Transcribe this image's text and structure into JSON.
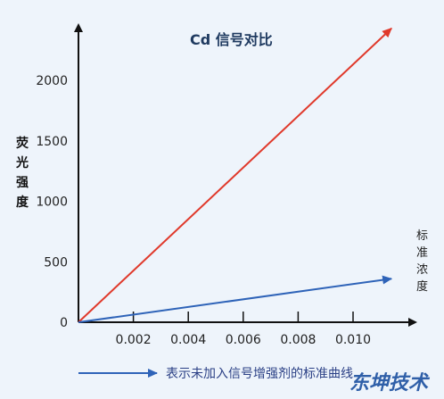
{
  "chart_data": {
    "type": "line",
    "title": "Cd 信号对比",
    "ylabel": "荧光强度",
    "xlabel": "标准浓度",
    "xlim": [
      0,
      0.0115
    ],
    "ylim": [
      0,
      2300
    ],
    "x_ticks": [
      0.002,
      0.004,
      0.006,
      0.008,
      0.01
    ],
    "x_tick_labels": [
      "0.002",
      "0.004",
      "0.006",
      "0.008",
      "0.010"
    ],
    "y_ticks": [
      0,
      500,
      1000,
      1500,
      2000
    ],
    "y_tick_labels": [
      "0",
      "500",
      "1000",
      "1500",
      "2000"
    ],
    "series": [
      {
        "color": "#e0392b",
        "x": [
          0,
          0.0114
        ],
        "y": [
          0,
          2430
        ]
      },
      {
        "name": "表示未加入信号增强剂的标准曲线",
        "color": "#2e63b8",
        "x": [
          0,
          0.0114
        ],
        "y": [
          0,
          360
        ]
      }
    ],
    "legend_position": "bottom",
    "grid": false
  },
  "watermark": "东坤技术",
  "colors": {
    "axis": "#111111",
    "red_series": "#e0392b",
    "blue_series": "#2e63b8"
  }
}
